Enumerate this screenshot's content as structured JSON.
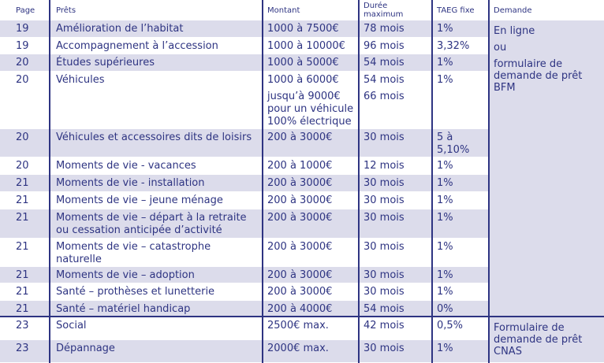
{
  "table": {
    "headers": [
      "Page",
      "Prêts",
      "Montant",
      "Durée maximum",
      "TAEG fixe",
      "Demande"
    ],
    "rows": [
      {
        "page": "19",
        "pret": "Amélioration de l’habitat",
        "montant": [
          "1000 à 7500€"
        ],
        "duree": [
          "78 mois"
        ],
        "taeg": "1%"
      },
      {
        "page": "19",
        "pret": "Accompagnement à l’accession",
        "montant": [
          "1000 à 10000€"
        ],
        "duree": [
          "96 mois"
        ],
        "taeg": "3,32%"
      },
      {
        "page": "20",
        "pret": "Études supérieures",
        "montant": [
          "1000 à 5000€"
        ],
        "duree": [
          "54 mois"
        ],
        "taeg": "1%"
      },
      {
        "page": "20",
        "pret": "Véhicules",
        "montant": [
          "1000 à 6000€",
          "jusqu’à 9000€ pour un véhicule 100% électrique"
        ],
        "duree": [
          "54 mois",
          "66 mois"
        ],
        "taeg": "1%"
      },
      {
        "page": "20",
        "pret": "Véhicules et accessoires dits de loisirs",
        "montant": [
          "200 à 3000€"
        ],
        "duree": [
          "30 mois"
        ],
        "taeg": "5 à 5,10%"
      },
      {
        "page": "20",
        "pret": "Moments de vie - vacances",
        "montant": [
          "200 à 1000€"
        ],
        "duree": [
          "12 mois"
        ],
        "taeg": "1%"
      },
      {
        "page": "21",
        "pret": "Moments de vie - installation",
        "montant": [
          "200 à 3000€"
        ],
        "duree": [
          "30 mois"
        ],
        "taeg": "1%"
      },
      {
        "page": "21",
        "pret": "Moments de vie – jeune ménage",
        "montant": [
          "200 à 3000€"
        ],
        "duree": [
          "30 mois"
        ],
        "taeg": "1%"
      },
      {
        "page": "21",
        "pret": "Moments de vie – départ à la retraite ou cessation anticipée d’activité",
        "montant": [
          "200 à 3000€"
        ],
        "duree": [
          "30 mois"
        ],
        "taeg": "1%"
      },
      {
        "page": "21",
        "pret": "Moments de vie – catastrophe naturelle",
        "montant": [
          "200 à 3000€"
        ],
        "duree": [
          "30 mois"
        ],
        "taeg": "1%"
      },
      {
        "page": "21",
        "pret": "Moments de vie – adoption",
        "montant": [
          "200 à 3000€"
        ],
        "duree": [
          "30 mois"
        ],
        "taeg": "1%"
      },
      {
        "page": "21",
        "pret": "Santé – prothèses et lunetterie",
        "montant": [
          "200 à 3000€"
        ],
        "duree": [
          "30 mois"
        ],
        "taeg": "1%"
      },
      {
        "page": "21",
        "pret": "Santé – matériel handicap",
        "montant": [
          "200 à 4000€"
        ],
        "duree": [
          "54 mois"
        ],
        "taeg": "0%"
      },
      {
        "page": "23",
        "pret": "Social",
        "montant": [
          "2500€ max."
        ],
        "duree": [
          "42 mois"
        ],
        "taeg": "0,5%"
      },
      {
        "page": "23",
        "pret": "Dépannage",
        "montant": [
          "2000€ max."
        ],
        "duree": [
          "30 mois"
        ],
        "taeg": "1%"
      }
    ],
    "demande": [
      {
        "lines": [
          "En ligne",
          "ou",
          "formulaire de demande de prêt BFM"
        ]
      },
      {
        "lines": [
          "Formulaire de demande de prêt CNAS"
        ]
      }
    ]
  }
}
